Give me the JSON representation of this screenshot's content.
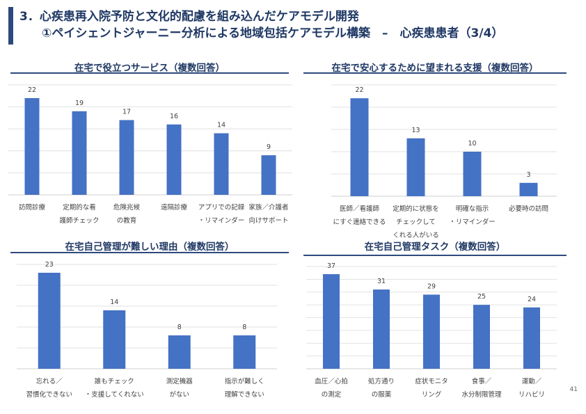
{
  "header": {
    "title_line1": "3．心疾患再入院予防と文化的配慮を組み込んだケアモデル開発",
    "title_line2": "①ペイシェントジャーニー分析による地域包括ケアモデル構築　–　心疾患患者（3/4）"
  },
  "page_number": "41",
  "colors": {
    "bar": "#4472c4",
    "title": "#1f3864",
    "rule": "#2e4a7d",
    "grid": "#d9d9d9"
  },
  "chart_data": [
    {
      "type": "bar",
      "title": "在宅で役立つサービス（複数回答）",
      "categories": [
        [
          "訪問診療"
        ],
        [
          "定期的な看",
          "護師チェック"
        ],
        [
          "危険兆候",
          "の教育"
        ],
        [
          "遠隔診療"
        ],
        [
          "アプリでの記録",
          "・リマインダー"
        ],
        [
          "家族／介護者",
          "向けサポート"
        ]
      ],
      "values": [
        22,
        19,
        17,
        16,
        14,
        9
      ],
      "ylim": [
        0,
        25
      ]
    },
    {
      "type": "bar",
      "title": "在宅で安心するために望まれる支援（複数回答）",
      "categories": [
        [
          "医師／看護師",
          "にすぐ連絡できる"
        ],
        [
          "定期的に状態を",
          "チェックして",
          "くれる人がいる"
        ],
        [
          "明確な指示",
          "・リマインダー"
        ],
        [
          "必要時の訪問"
        ]
      ],
      "values": [
        22,
        13,
        10,
        3
      ],
      "ylim": [
        0,
        25
      ]
    },
    {
      "type": "bar",
      "title": "在宅自己管理が難しい理由（複数回答）",
      "categories": [
        [
          "忘れる／",
          "習慣化できない"
        ],
        [
          "誰もチェック",
          "・支援してくれない"
        ],
        [
          "測定機器",
          "がない"
        ],
        [
          "指示が難しく",
          "理解できない"
        ]
      ],
      "values": [
        23,
        14,
        8,
        8
      ],
      "ylim": [
        0,
        25
      ]
    },
    {
      "type": "bar",
      "title": "在宅自己管理タスク（複数回答）",
      "categories": [
        [
          "血圧／心拍",
          "の測定"
        ],
        [
          "処方通り",
          "の服薬"
        ],
        [
          "症状モニタ",
          "リング"
        ],
        [
          "食事／",
          "水分制限管理"
        ],
        [
          "運動／",
          "リハビリ"
        ]
      ],
      "values": [
        37,
        31,
        29,
        25,
        24
      ],
      "ylim": [
        0,
        40
      ]
    }
  ]
}
